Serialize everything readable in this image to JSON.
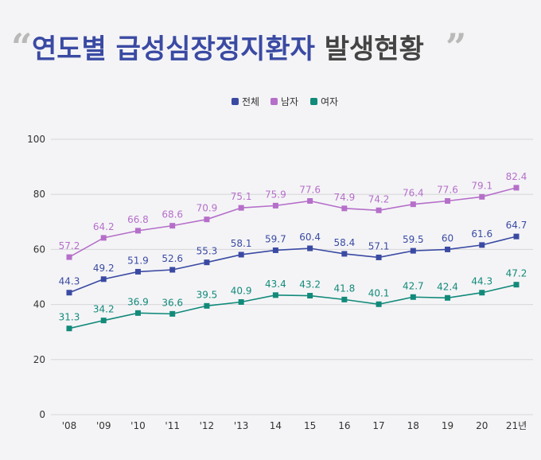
{
  "title": {
    "main": "연도별 급성심장정지환자",
    "suffix": "발생현황",
    "open_quote": "“",
    "close_quote": "”"
  },
  "colors": {
    "total": "#3a4aa3",
    "male": "#b56fc9",
    "female": "#128a7a",
    "grid": "#d6d6da",
    "axis_text": "#333333"
  },
  "chart_data": {
    "type": "line",
    "categories": [
      "'08",
      "'09",
      "'10",
      "'11",
      "'12",
      "'13",
      "14",
      "15",
      "16",
      "17",
      "18",
      "19",
      "20",
      "21년"
    ],
    "series": [
      {
        "name": "전체",
        "color": "#3a4aa3",
        "values": [
          44.3,
          49.2,
          51.9,
          52.6,
          55.3,
          58.1,
          59.7,
          60.4,
          58.4,
          57.1,
          59.5,
          60,
          61.6,
          64.7
        ]
      },
      {
        "name": "남자",
        "color": "#b56fc9",
        "values": [
          57.2,
          64.2,
          66.8,
          68.6,
          70.9,
          75.1,
          75.9,
          77.6,
          74.9,
          74.2,
          76.4,
          77.6,
          79.1,
          82.4
        ]
      },
      {
        "name": "여자",
        "color": "#128a7a",
        "values": [
          31.3,
          34.2,
          36.9,
          36.6,
          39.5,
          40.9,
          43.4,
          43.2,
          41.8,
          40.1,
          42.7,
          42.4,
          44.3,
          47.2
        ]
      }
    ],
    "ylim": [
      0,
      100
    ],
    "yticks": [
      0,
      20,
      40,
      60,
      80,
      100
    ],
    "grid": true,
    "legend": "top-center"
  }
}
